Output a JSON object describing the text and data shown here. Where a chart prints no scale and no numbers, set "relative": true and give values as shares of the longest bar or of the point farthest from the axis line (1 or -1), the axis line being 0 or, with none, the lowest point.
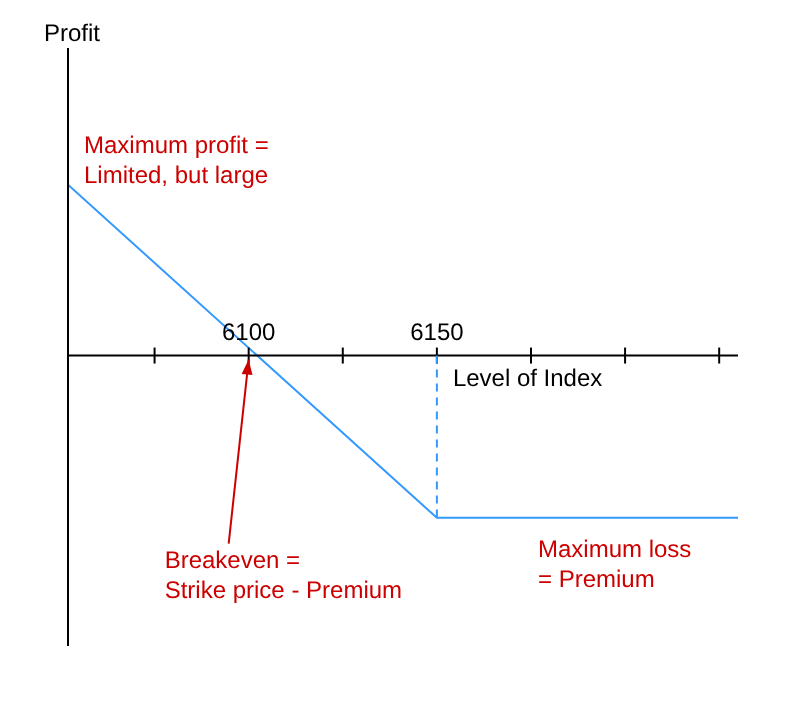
{
  "chart_data": {
    "type": "line",
    "relative": true,
    "xlabel": "Level of Index",
    "x": [
      6052,
      6150,
      6230
    ],
    "series": [
      {
        "color": "#3399ff",
        "values": [
          1,
          -0.95,
          -0.95
        ]
      }
    ],
    "xlim": [
      6052,
      6230
    ],
    "xticks": [
      {
        "value": 6075,
        "label": null
      },
      6100,
      {
        "value": 6125,
        "label": null
      },
      6150,
      {
        "value": 6175,
        "label": null
      },
      {
        "value": 6200,
        "label": null
      },
      {
        "value": 6225,
        "label": null
      }
    ],
    "ref_lines": [
      {
        "axis": "x",
        "value": 6150,
        "color": "#3399ff",
        "line_style": "dashed"
      }
    ],
    "annotations": [
      "Profit",
      "Maximum profit =\nLimited, but large",
      {
        "text": "Breakeven =\nStrike price - Premium",
        "x": 6100,
        "y": 0
      },
      "Maximum loss\n= Premium"
    ],
    "grid": false,
    "legend": false,
    "marker": "none",
    "line_style": "solid"
  }
}
